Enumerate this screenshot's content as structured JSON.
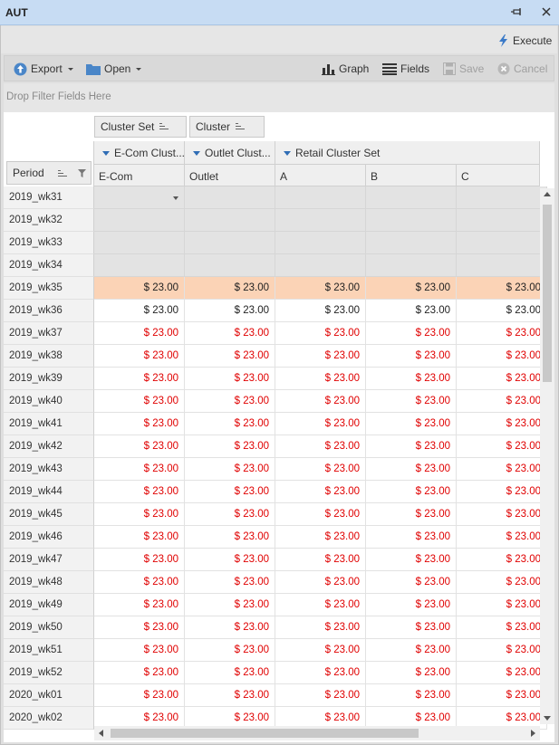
{
  "window": {
    "title": "AUT"
  },
  "exec": {
    "label": "Execute",
    "icon": "lightning-icon"
  },
  "toolbar": {
    "export_label": "Export",
    "open_label": "Open",
    "graph_label": "Graph",
    "fields_label": "Fields",
    "save_label": "Save",
    "cancel_label": "Cancel"
  },
  "filter": {
    "hint": "Drop Filter Fields Here"
  },
  "pivot": {
    "column_fields": [
      "Cluster Set",
      "Cluster"
    ],
    "row_field": "Period",
    "column_groups": [
      "E-Com Clust...",
      "Outlet Clust...",
      "Retail Cluster Set"
    ],
    "columns": [
      "E-Com",
      "Outlet",
      "A",
      "B",
      "C"
    ],
    "rows": [
      {
        "period": "2019_wk31",
        "state": "locked",
        "values": [
          "",
          "",
          "",
          "",
          ""
        ]
      },
      {
        "period": "2019_wk32",
        "state": "locked",
        "values": [
          "",
          "",
          "",
          "",
          ""
        ]
      },
      {
        "period": "2019_wk33",
        "state": "locked",
        "values": [
          "",
          "",
          "",
          "",
          ""
        ]
      },
      {
        "period": "2019_wk34",
        "state": "locked",
        "values": [
          "",
          "",
          "",
          "",
          ""
        ]
      },
      {
        "period": "2019_wk35",
        "state": "highlight",
        "values": [
          "$ 23.00",
          "$ 23.00",
          "$ 23.00",
          "$ 23.00",
          "$ 23.00"
        ]
      },
      {
        "period": "2019_wk36",
        "state": "normal",
        "values": [
          "$ 23.00",
          "$ 23.00",
          "$ 23.00",
          "$ 23.00",
          "$ 23.00"
        ]
      },
      {
        "period": "2019_wk37",
        "state": "red",
        "values": [
          "$ 23.00",
          "$ 23.00",
          "$ 23.00",
          "$ 23.00",
          "$ 23.00"
        ]
      },
      {
        "period": "2019_wk38",
        "state": "red",
        "values": [
          "$ 23.00",
          "$ 23.00",
          "$ 23.00",
          "$ 23.00",
          "$ 23.00"
        ]
      },
      {
        "period": "2019_wk39",
        "state": "red",
        "values": [
          "$ 23.00",
          "$ 23.00",
          "$ 23.00",
          "$ 23.00",
          "$ 23.00"
        ]
      },
      {
        "period": "2019_wk40",
        "state": "red",
        "values": [
          "$ 23.00",
          "$ 23.00",
          "$ 23.00",
          "$ 23.00",
          "$ 23.00"
        ]
      },
      {
        "period": "2019_wk41",
        "state": "red",
        "values": [
          "$ 23.00",
          "$ 23.00",
          "$ 23.00",
          "$ 23.00",
          "$ 23.00"
        ]
      },
      {
        "period": "2019_wk42",
        "state": "red",
        "values": [
          "$ 23.00",
          "$ 23.00",
          "$ 23.00",
          "$ 23.00",
          "$ 23.00"
        ]
      },
      {
        "period": "2019_wk43",
        "state": "red",
        "values": [
          "$ 23.00",
          "$ 23.00",
          "$ 23.00",
          "$ 23.00",
          "$ 23.00"
        ]
      },
      {
        "period": "2019_wk44",
        "state": "red",
        "values": [
          "$ 23.00",
          "$ 23.00",
          "$ 23.00",
          "$ 23.00",
          "$ 23.00"
        ]
      },
      {
        "period": "2019_wk45",
        "state": "red",
        "values": [
          "$ 23.00",
          "$ 23.00",
          "$ 23.00",
          "$ 23.00",
          "$ 23.00"
        ]
      },
      {
        "period": "2019_wk46",
        "state": "red",
        "values": [
          "$ 23.00",
          "$ 23.00",
          "$ 23.00",
          "$ 23.00",
          "$ 23.00"
        ]
      },
      {
        "period": "2019_wk47",
        "state": "red",
        "values": [
          "$ 23.00",
          "$ 23.00",
          "$ 23.00",
          "$ 23.00",
          "$ 23.00"
        ]
      },
      {
        "period": "2019_wk48",
        "state": "red",
        "values": [
          "$ 23.00",
          "$ 23.00",
          "$ 23.00",
          "$ 23.00",
          "$ 23.00"
        ]
      },
      {
        "period": "2019_wk49",
        "state": "red",
        "values": [
          "$ 23.00",
          "$ 23.00",
          "$ 23.00",
          "$ 23.00",
          "$ 23.00"
        ]
      },
      {
        "period": "2019_wk50",
        "state": "red",
        "values": [
          "$ 23.00",
          "$ 23.00",
          "$ 23.00",
          "$ 23.00",
          "$ 23.00"
        ]
      },
      {
        "period": "2019_wk51",
        "state": "red",
        "values": [
          "$ 23.00",
          "$ 23.00",
          "$ 23.00",
          "$ 23.00",
          "$ 23.00"
        ]
      },
      {
        "period": "2019_wk52",
        "state": "red",
        "values": [
          "$ 23.00",
          "$ 23.00",
          "$ 23.00",
          "$ 23.00",
          "$ 23.00"
        ]
      },
      {
        "period": "2020_wk01",
        "state": "red",
        "values": [
          "$ 23.00",
          "$ 23.00",
          "$ 23.00",
          "$ 23.00",
          "$ 23.00"
        ]
      },
      {
        "period": "2020_wk02",
        "state": "red",
        "values": [
          "$ 23.00",
          "$ 23.00",
          "$ 23.00",
          "$ 23.00",
          "$ 23.00"
        ]
      }
    ]
  },
  "colors": {
    "titlebar": "#c7dcf3",
    "highlight_row": "#fbd3b6",
    "value_red": "#e00000",
    "locked_cell": "#e3e3e3",
    "accent_blue": "#2f6db5"
  }
}
